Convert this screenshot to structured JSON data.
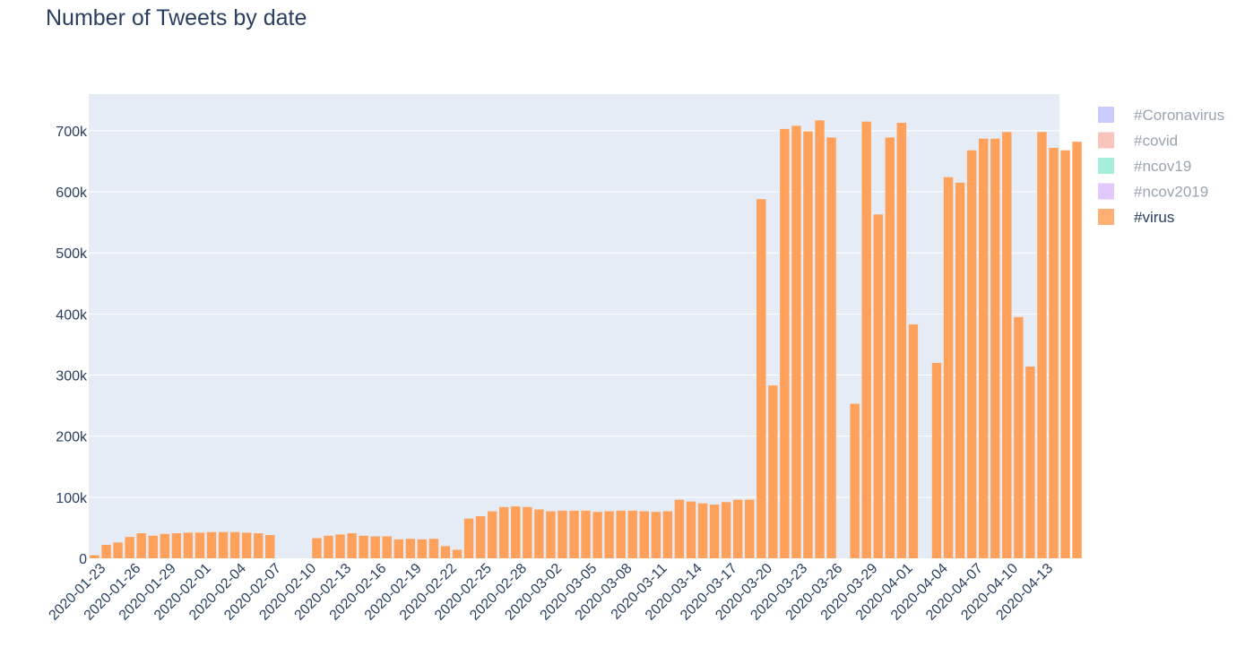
{
  "chart_data": {
    "type": "bar",
    "title": "Number of Tweets by date",
    "xlabel": "",
    "ylabel": "",
    "ylim": [
      0,
      760000
    ],
    "yticks": [
      0,
      100000,
      200000,
      300000,
      400000,
      500000,
      600000,
      700000
    ],
    "ytick_labels": [
      "0",
      "100k",
      "200k",
      "300k",
      "400k",
      "500k",
      "600k",
      "700k"
    ],
    "x_start": "2020-01-22",
    "x_end": "2020-04-13",
    "xtick_labels": [
      "2020-01-23",
      "2020-01-26",
      "2020-01-29",
      "2020-02-01",
      "2020-02-04",
      "2020-02-07",
      "2020-02-10",
      "2020-02-13",
      "2020-02-16",
      "2020-02-19",
      "2020-02-22",
      "2020-02-25",
      "2020-02-28",
      "2020-03-02",
      "2020-03-05",
      "2020-03-08",
      "2020-03-11",
      "2020-03-14",
      "2020-03-17",
      "2020-03-20",
      "2020-03-23",
      "2020-03-26",
      "2020-03-29",
      "2020-04-01",
      "2020-04-04",
      "2020-04-07",
      "2020-04-10",
      "2020-04-13"
    ],
    "grid": true,
    "legend_position": "right",
    "series": [
      {
        "name": "#Coronavirus",
        "color": "#636efa",
        "visible": false,
        "values": []
      },
      {
        "name": "#covid",
        "color": "#ef553b",
        "visible": false,
        "values": []
      },
      {
        "name": "#ncov19",
        "color": "#00cc96",
        "visible": false,
        "values": []
      },
      {
        "name": "#ncov2019",
        "color": "#ab63fa",
        "visible": false,
        "values": []
      },
      {
        "name": "#virus",
        "color": "#ffa15a",
        "visible": true,
        "values": [
          5000,
          22000,
          26000,
          35000,
          41000,
          37000,
          40000,
          41000,
          42000,
          42000,
          43000,
          43000,
          43000,
          42000,
          41000,
          38000,
          0,
          0,
          0,
          33000,
          37000,
          39000,
          41000,
          37000,
          36000,
          36000,
          31000,
          32000,
          31000,
          32000,
          20000,
          14000,
          65000,
          69000,
          77000,
          84000,
          85000,
          84000,
          80000,
          77000,
          78000,
          78000,
          78000,
          76000,
          77000,
          78000,
          78000,
          77000,
          76000,
          77000,
          96000,
          93000,
          90000,
          88000,
          92000,
          96000,
          96000,
          588000,
          283000,
          703000,
          708000,
          699000,
          717000,
          689000,
          0,
          253000,
          715000,
          563000,
          689000,
          713000,
          383000,
          0,
          320000,
          624000,
          615000,
          668000,
          687000,
          687000,
          698000,
          395000,
          314000,
          698000,
          672000,
          668000,
          682000
        ]
      }
    ]
  }
}
